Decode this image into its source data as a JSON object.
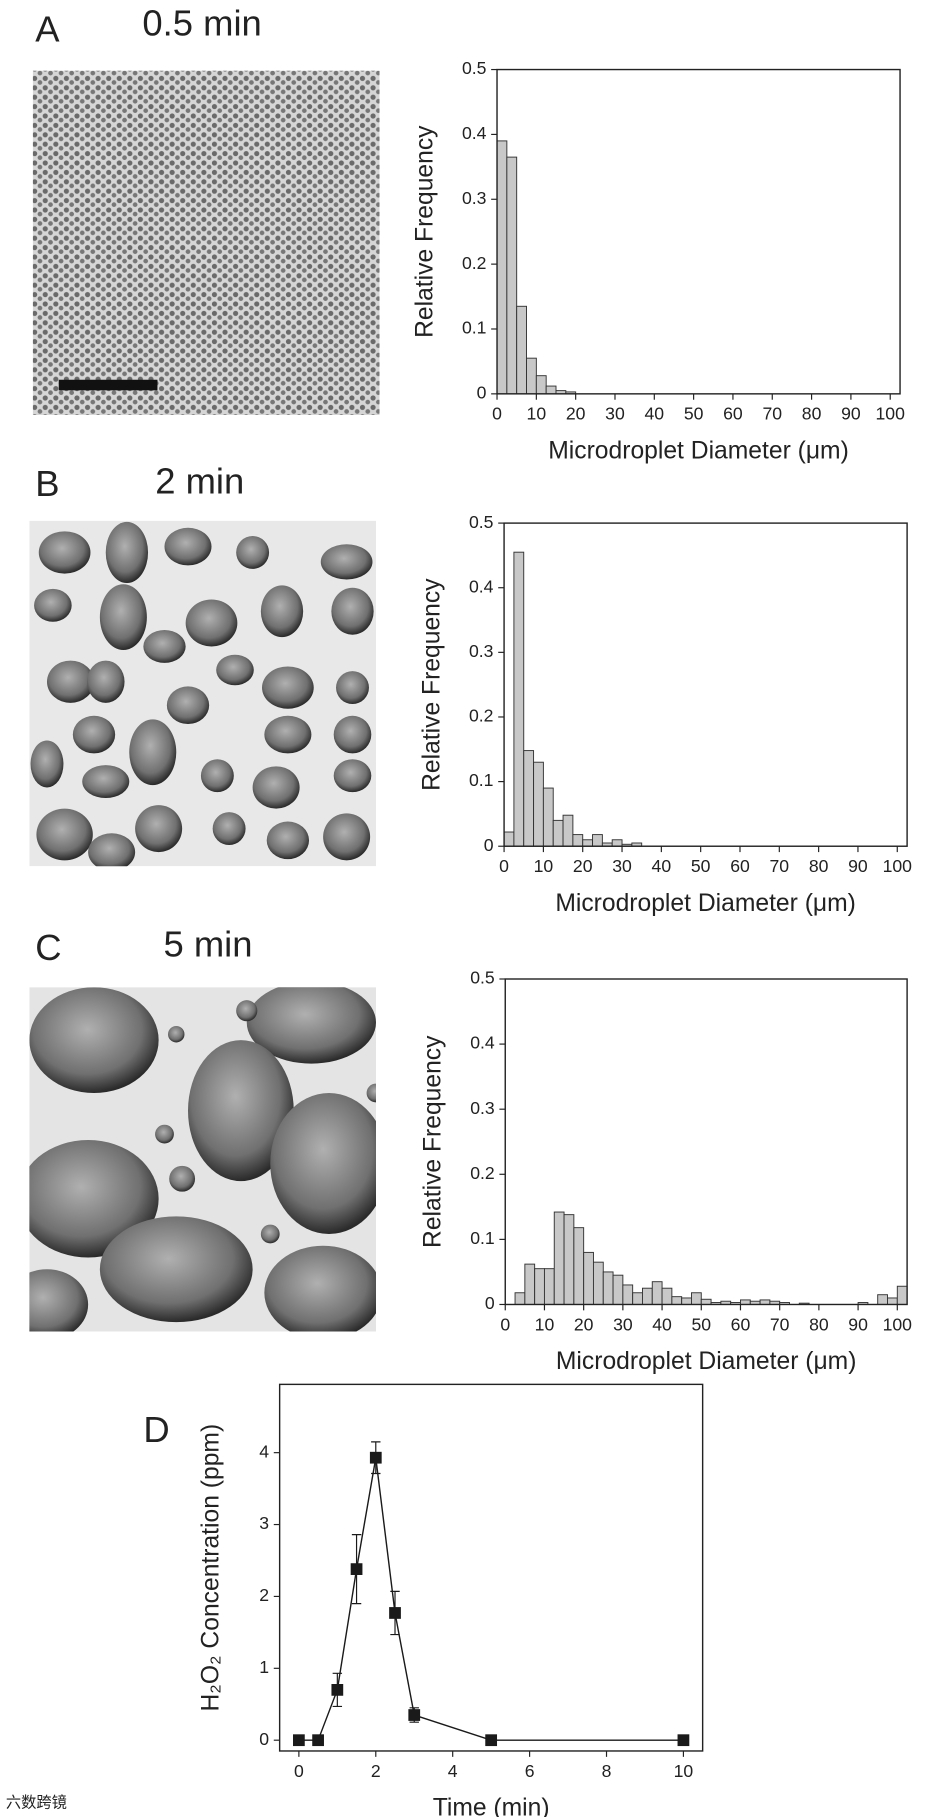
{
  "chart_data": [
    {
      "type": "histogram",
      "label": "A",
      "title": "0.5 min",
      "x_label": "Microdroplet Diameter (μm)",
      "y_label": "Relative Frequency",
      "bins": [
        0,
        2.5,
        5,
        7.5,
        10,
        12.5,
        15,
        17.5,
        20
      ],
      "values": [
        0.39,
        0.365,
        0.135,
        0.055,
        0.028,
        0.012,
        0.005,
        0.003
      ],
      "color": "#c8c8c8",
      "xlim": [
        0,
        102.5
      ],
      "ylim": [
        0,
        0.5
      ],
      "xticks": [
        0,
        10,
        20,
        30,
        40,
        50,
        60,
        70,
        80,
        90,
        100
      ],
      "yticks": [
        0,
        0.1,
        0.2,
        0.3,
        0.4,
        0.5
      ]
    },
    {
      "type": "histogram",
      "label": "B",
      "title": "2 min",
      "x_label": "Microdroplet Diameter (μm)",
      "y_label": "Relative Frequency",
      "bins": [
        0,
        2.5,
        5,
        7.5,
        10,
        12.5,
        15,
        17.5,
        20,
        22.5,
        25,
        27.5,
        30,
        32.5,
        35
      ],
      "values": [
        0.022,
        0.455,
        0.148,
        0.13,
        0.09,
        0.04,
        0.048,
        0.018,
        0.01,
        0.018,
        0.005,
        0.01,
        0.003,
        0.005
      ],
      "color": "#c8c8c8",
      "xlim": [
        0,
        102.5
      ],
      "ylim": [
        0,
        0.5
      ],
      "xticks": [
        0,
        10,
        20,
        30,
        40,
        50,
        60,
        70,
        80,
        90,
        100
      ],
      "yticks": [
        0,
        0.1,
        0.2,
        0.3,
        0.4,
        0.5
      ]
    },
    {
      "type": "histogram",
      "label": "C",
      "title": "5 min",
      "x_label": "Microdroplet Diameter (μm)",
      "y_label": "Relative Frequency",
      "bins": [
        0,
        2.5,
        5,
        7.5,
        10,
        12.5,
        15,
        17.5,
        20,
        22.5,
        25,
        27.5,
        30,
        32.5,
        35,
        37.5,
        40,
        42.5,
        45,
        47.5,
        50,
        52.5,
        55,
        57.5,
        60,
        62.5,
        65,
        67.5,
        70,
        72.5,
        75,
        77.5,
        80,
        82.5,
        85,
        87.5,
        90,
        92.5,
        95,
        97.5,
        100,
        102.5
      ],
      "values": [
        0,
        0.018,
        0.062,
        0.055,
        0.055,
        0.142,
        0.138,
        0.118,
        0.08,
        0.065,
        0.05,
        0.045,
        0.03,
        0.018,
        0.025,
        0.035,
        0.025,
        0.012,
        0.01,
        0.018,
        0.008,
        0.003,
        0.005,
        0.003,
        0.007,
        0.005,
        0.007,
        0.005,
        0.003,
        0,
        0.002,
        0,
        0,
        0,
        0,
        0,
        0.003,
        0,
        0.015,
        0.01,
        0.028
      ],
      "color": "#c8c8c8",
      "xlim": [
        0,
        102.5
      ],
      "ylim": [
        0,
        0.5
      ],
      "xticks": [
        0,
        10,
        20,
        30,
        40,
        50,
        60,
        70,
        80,
        90,
        100
      ],
      "yticks": [
        0,
        0.1,
        0.2,
        0.3,
        0.4,
        0.5
      ]
    },
    {
      "type": "line",
      "label": "D",
      "x_label": "Time (min)",
      "y_label": "H₂O₂ Concentration (ppm)",
      "x": [
        0,
        0.5,
        1,
        1.5,
        2,
        2.5,
        3,
        5,
        10
      ],
      "values": [
        0,
        0,
        0.7,
        2.38,
        3.93,
        1.77,
        0.35,
        0,
        0
      ],
      "errors": [
        0,
        0,
        0.23,
        0.48,
        0.22,
        0.3,
        0.1,
        0,
        0
      ],
      "color": "#1a1a1a",
      "xlim": [
        -0.5,
        10.5
      ],
      "ylim": [
        -0.15,
        4.95
      ],
      "xticks": [
        0,
        2,
        4,
        6,
        8,
        10
      ],
      "yticks": [
        0,
        1,
        2,
        3,
        4
      ]
    }
  ],
  "watermark": "六数跨镜"
}
